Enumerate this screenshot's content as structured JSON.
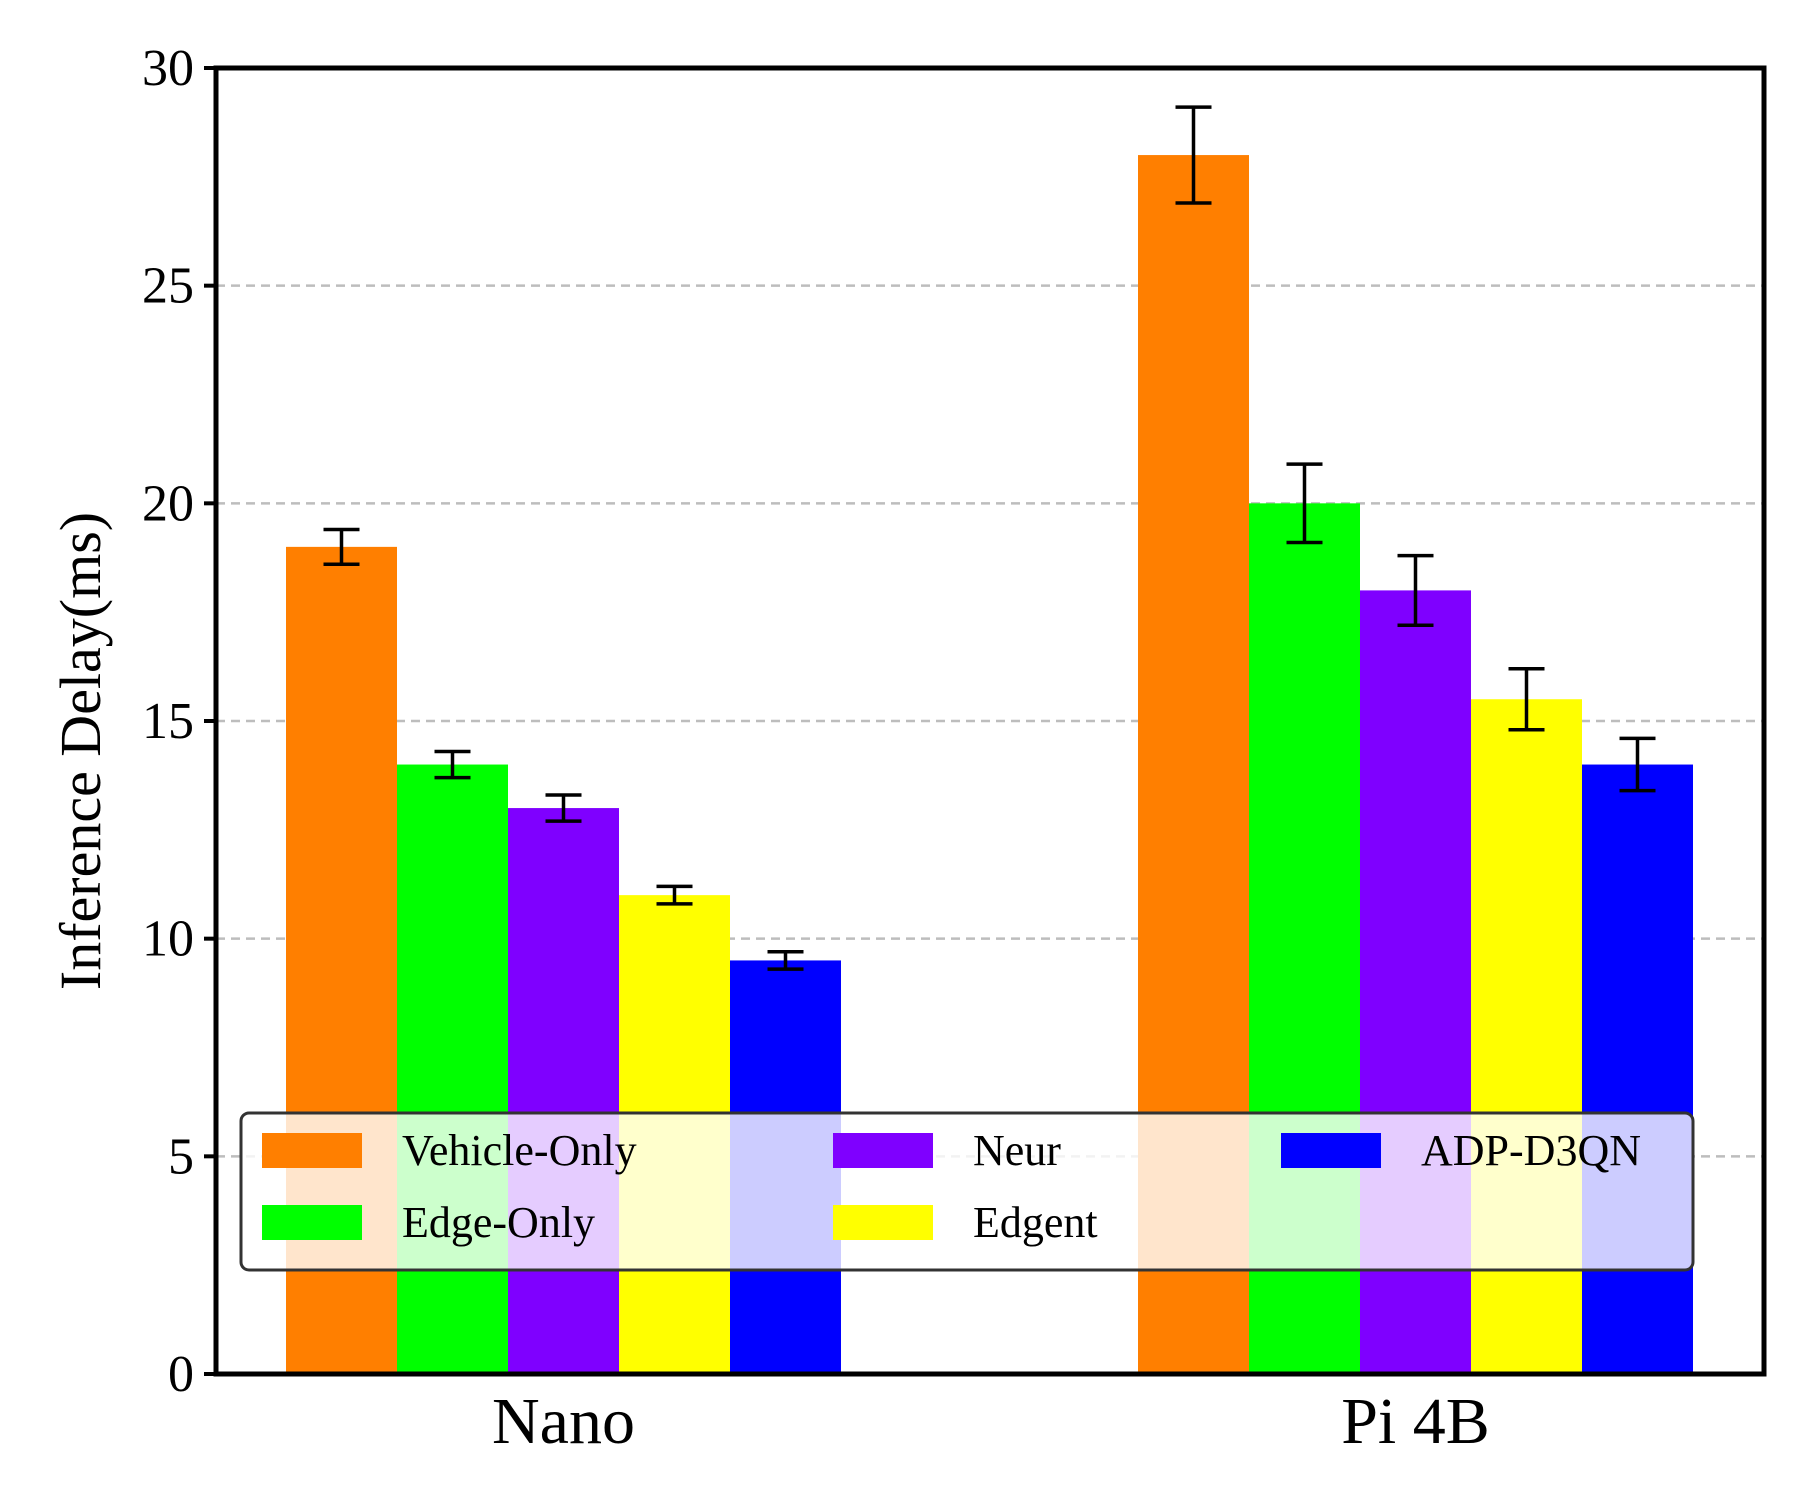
{
  "chart_data": {
    "type": "bar",
    "title": "",
    "xlabel": "",
    "ylabel": "Inference Delay(ms)",
    "ylim": [
      0,
      30
    ],
    "yticks": [
      0,
      5,
      10,
      15,
      20,
      25,
      30
    ],
    "grid": "horizontal dashed",
    "legend_position": "lower-center",
    "categories": [
      "Nano",
      "Pi 4B"
    ],
    "series": [
      {
        "name": "Vehicle-Only",
        "color": "#ff7f00",
        "values": [
          19,
          28
        ],
        "errors": [
          0.4,
          1.1
        ]
      },
      {
        "name": "Edge-Only",
        "color": "#00ff00",
        "values": [
          14,
          20
        ],
        "errors": [
          0.3,
          0.9
        ]
      },
      {
        "name": "Neur",
        "color": "#7f00ff",
        "values": [
          13,
          18
        ],
        "errors": [
          0.3,
          0.8
        ]
      },
      {
        "name": "Edgent",
        "color": "#ffff00",
        "values": [
          11,
          15.5
        ],
        "errors": [
          0.2,
          0.7
        ]
      },
      {
        "name": "ADP-D3QN",
        "color": "#0000ff",
        "values": [
          9.5,
          14
        ],
        "errors": [
          0.2,
          0.6
        ]
      }
    ]
  }
}
